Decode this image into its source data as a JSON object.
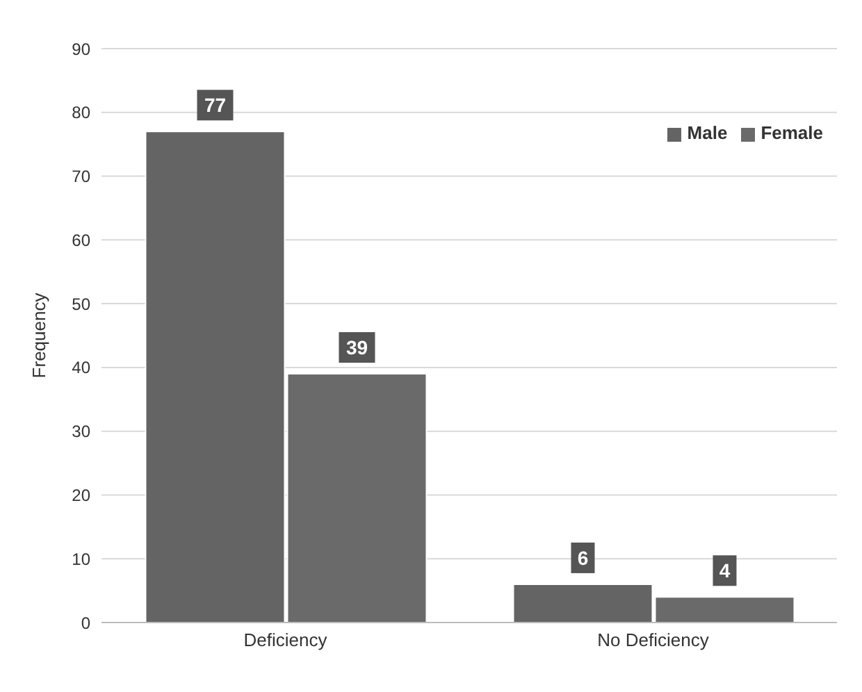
{
  "chart_data": {
    "type": "bar",
    "ylabel": "Frequency",
    "categories": [
      "Deficiency",
      "No Deficiency"
    ],
    "series": [
      {
        "name": "Male",
        "color": "#646464",
        "values": [
          77,
          6
        ]
      },
      {
        "name": "Female",
        "color": "#6a6a6a",
        "values": [
          39,
          4
        ]
      }
    ],
    "ylim": [
      0,
      90
    ],
    "yticks": [
      0,
      10,
      20,
      30,
      40,
      50,
      60,
      70,
      80,
      90
    ],
    "grid": "y",
    "legend": "top right",
    "data_labels": true
  }
}
